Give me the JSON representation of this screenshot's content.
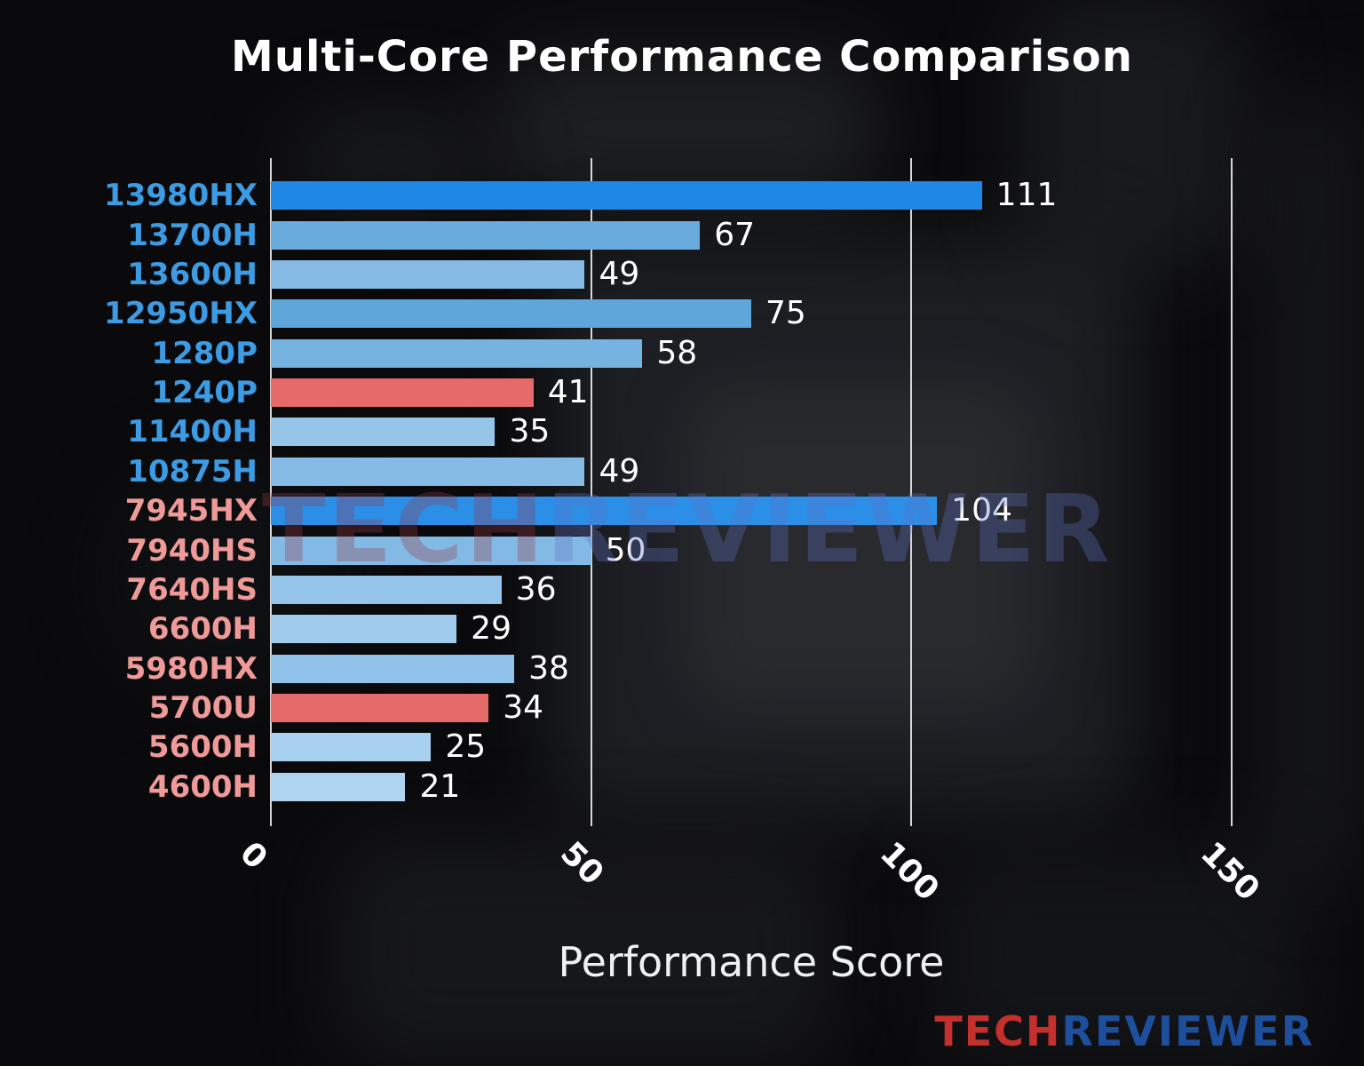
{
  "title": "Multi-Core Performance Comparison",
  "chart_data": {
    "type": "bar",
    "orientation": "horizontal",
    "title": "Multi-Core Performance Comparison",
    "xlabel": "Performance Score",
    "ylabel": "",
    "xlim": [
      0,
      150
    ],
    "xticks": [
      0,
      50,
      100,
      150
    ],
    "grid": true,
    "categories": [
      "13980HX",
      "13700H",
      "13600H",
      "12950HX",
      "1280P",
      "1240P",
      "11400H",
      "10875H",
      "7945HX",
      "7940HS",
      "7640HS",
      "6600H",
      "5980HX",
      "5700U",
      "5600H",
      "4600H"
    ],
    "values": [
      111,
      67,
      49,
      75,
      58,
      41,
      35,
      49,
      104,
      50,
      36,
      29,
      38,
      34,
      25,
      21
    ],
    "bar_colors": [
      "#1f87e5",
      "#69abdd",
      "#85bbe5",
      "#5fa6db",
      "#77b3e1",
      "#e66a6a",
      "#96c5ea",
      "#85bbe5",
      "#2b8ee7",
      "#83bae5",
      "#94c4ea",
      "#a0cbed",
      "#90c2e9",
      "#e66a6a",
      "#a8d0ef",
      "#aed4f1"
    ],
    "label_colors": [
      "#3d9be3",
      "#3d9be3",
      "#3d9be3",
      "#3d9be3",
      "#3d9be3",
      "#3d9be3",
      "#3d9be3",
      "#3d9be3",
      "#ef9a98",
      "#ef9a98",
      "#ef9a98",
      "#ef9a98",
      "#ef9a98",
      "#ef9a98",
      "#ef9a98",
      "#ef9a98"
    ],
    "highlight_color": "#e66a6a",
    "value_label_color": "#ffffff",
    "tick_label_color": "#ffffff",
    "gridline_color": "#d7d7d7"
  },
  "watermark": {
    "part1": "TECH",
    "part2": "REVIEWER",
    "color1": "rgba(150,60,70,0.32)",
    "color2": "rgba(95,115,195,0.32)"
  },
  "logo": {
    "part1": "TECH",
    "part2": "REVIEWER",
    "color1": "#c4302b",
    "color2": "#1d4f9c"
  }
}
